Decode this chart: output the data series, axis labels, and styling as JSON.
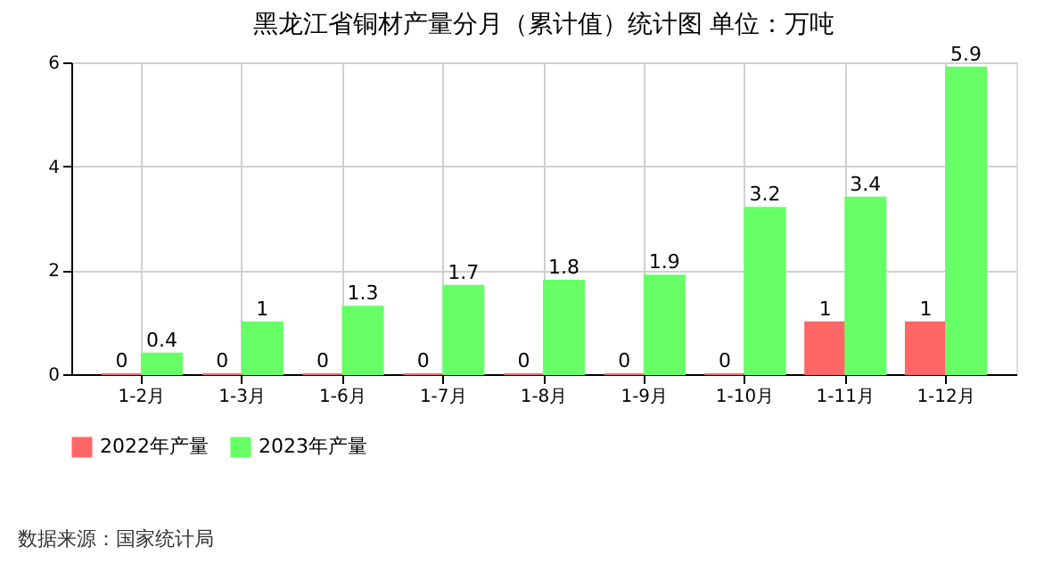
{
  "chart_data": {
    "type": "bar",
    "title": "黑龙江省铜材产量分月（累计值）统计图 单位：万吨",
    "categories": [
      "1-2月",
      "1-3月",
      "1-6月",
      "1-7月",
      "1-8月",
      "1-9月",
      "1-10月",
      "1-11月",
      "1-12月"
    ],
    "series": [
      {
        "name": "2022年产量",
        "color": "#ff6666",
        "values": [
          0,
          0,
          0,
          0,
          0,
          0,
          0,
          1,
          1
        ]
      },
      {
        "name": "2023年产量",
        "color": "#66ff66",
        "values": [
          0.4,
          1,
          1.3,
          1.7,
          1.8,
          1.9,
          3.2,
          3.4,
          5.9
        ]
      }
    ],
    "ylim": [
      0,
      6
    ],
    "yticks": [
      0,
      2,
      4,
      6
    ],
    "grid": true,
    "legend": "bottom",
    "data_labels": true,
    "annotations": [
      "数据来源：国家统计局"
    ]
  }
}
